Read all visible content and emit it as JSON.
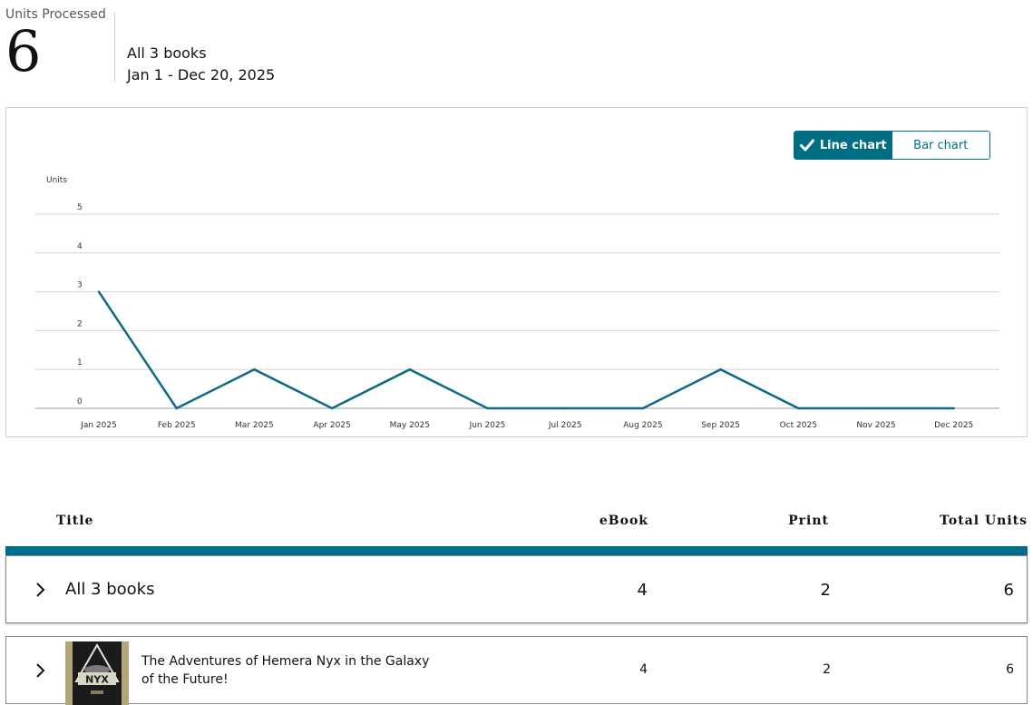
{
  "summary": {
    "label": "Units Processed",
    "value": "6",
    "scope": "All 3 books",
    "date_range": "Jan 1 - Dec 20, 2025"
  },
  "toggle": {
    "line_label": "Line chart",
    "bar_label": "Bar chart",
    "selected": "line"
  },
  "chart_data": {
    "type": "line",
    "ylabel": "Units",
    "xlabel": "",
    "title": "",
    "categories": [
      "Jan 2025",
      "Feb 2025",
      "Mar 2025",
      "Apr 2025",
      "May 2025",
      "Jun 2025",
      "Jul 2025",
      "Aug 2025",
      "Sep 2025",
      "Oct 2025",
      "Nov 2025",
      "Dec 2025"
    ],
    "series": [
      {
        "values": [
          3,
          0,
          1,
          0,
          1,
          0,
          0,
          0,
          1,
          0,
          0,
          0
        ]
      }
    ],
    "ylim": [
      0,
      5
    ],
    "yticks": [
      0,
      1,
      2,
      3,
      4,
      5
    ],
    "grid": true,
    "line_color": "#0f6a87"
  },
  "table": {
    "headers": {
      "title": "Title",
      "ebook": "eBook",
      "print": "Print",
      "total": "Total Units"
    },
    "summary_row": {
      "label": "All 3 books",
      "ebook": "4",
      "print": "2",
      "total": "6"
    },
    "rows": [
      {
        "title": "The Adventures of Hemera Nyx in the Galaxy of the Future!",
        "ebook": "4",
        "print": "2",
        "total": "6",
        "cover_text": "NYX"
      }
    ]
  },
  "colors": {
    "accent": "#006e82",
    "table_bar": "#006e8a"
  }
}
